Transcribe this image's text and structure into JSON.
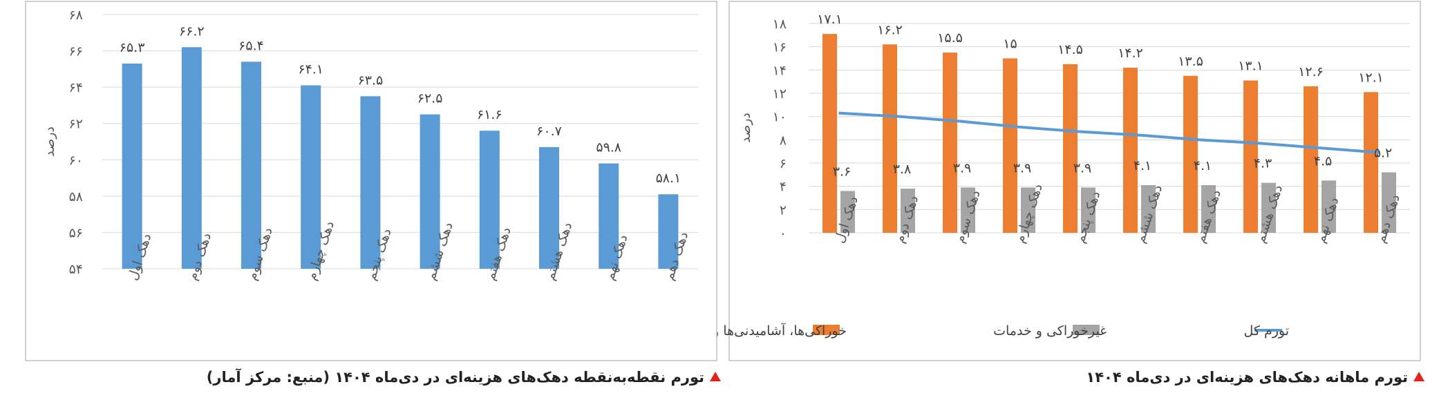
{
  "colors": {
    "food": "#ED7D31",
    "nonfood": "#A5A5A5",
    "total": "#5B9BD5",
    "bar_right": "#5B9BD5",
    "caption_marker": "#E0241B"
  },
  "captions": {
    "left_panel": "تورم ماهانه دهک‌های هزینه‌ای در دی‌ماه ۱۴۰۴",
    "right_panel": "تورم نقطه‌به‌نقطه دهک‌های هزینه‌ای در دی‌ماه ۱۴۰۴ (منبع: مرکز آمار)"
  },
  "chart_data": [
    {
      "id": "monthly",
      "type": "bar",
      "combo_line_series": "تورم کل",
      "categories": [
        "دهک اول",
        "دهک دوم",
        "دهک سوم",
        "دهک چهارم",
        "دهک پنجم",
        "دهک ششم",
        "دهک هفتم",
        "دهک هشتم",
        "دهک نهم",
        "دهک دهم"
      ],
      "series": [
        {
          "name": "خوراکی‌ها، آشامیدنی‌ها و دخانیات",
          "kind": "bar",
          "color": "#ED7D31",
          "values": [
            17.1,
            16.2,
            15.5,
            15,
            14.5,
            14.2,
            13.5,
            13.1,
            12.6,
            12.1
          ],
          "labels": [
            "۱۷.۱",
            "۱۶.۲",
            "۱۵.۵",
            "۱۵",
            "۱۴.۵",
            "۱۴.۲",
            "۱۳.۵",
            "۱۳.۱",
            "۱۲.۶",
            "۱۲.۱"
          ]
        },
        {
          "name": "غیرخوراکی و خدمات",
          "kind": "bar",
          "color": "#A5A5A5",
          "values": [
            3.6,
            3.8,
            3.9,
            3.9,
            3.9,
            4.1,
            4.1,
            4.3,
            4.5,
            5.2
          ],
          "labels": [
            "۳.۶",
            "۳.۸",
            "۳.۹",
            "۳.۹",
            "۳.۹",
            "۴.۱",
            "۴.۱",
            "۴.۳",
            "۴.۵",
            "۵.۲"
          ]
        },
        {
          "name": "تورم کل",
          "kind": "line",
          "color": "#5B9BD5",
          "values": [
            10.3,
            10.0,
            9.6,
            9.1,
            8.7,
            8.4,
            8.0,
            7.7,
            7.3,
            6.9
          ]
        }
      ],
      "ylabel": "درصد",
      "ylim": [
        0,
        18
      ],
      "yticks": [
        0,
        2,
        4,
        6,
        8,
        10,
        12,
        14,
        16,
        18
      ],
      "ytick_labels": [
        "۰",
        "۲",
        "۴",
        "۶",
        "۸",
        "۱۰",
        "۱۲",
        "۱۴",
        "۱۶",
        "۱۸"
      ],
      "grid": true,
      "legend_position": "bottom",
      "legend": [
        "خوراکی‌ها، آشامیدنی‌ها و دخانیات",
        "غیرخوراکی و خدمات",
        "تورم کل"
      ]
    },
    {
      "id": "p2p",
      "type": "bar",
      "categories": [
        "دهک اول",
        "دهک دوم",
        "دهک سوم",
        "دهک چهارم",
        "دهک پنجم",
        "دهک ششم",
        "دهک هفتم",
        "دهک هشتم",
        "دهک نهم",
        "دهک دهم"
      ],
      "values": [
        65.3,
        66.2,
        65.4,
        64.1,
        63.5,
        62.5,
        61.6,
        60.7,
        59.8,
        58.1
      ],
      "labels": [
        "۶۵.۳",
        "۶۶.۲",
        "۶۵.۴",
        "۶۴.۱",
        "۶۳.۵",
        "۶۲.۵",
        "۶۱.۶",
        "۶۰.۷",
        "۵۹.۸",
        "۵۸.۱"
      ],
      "ylabel": "درصد",
      "ylim": [
        54,
        68
      ],
      "yticks": [
        54,
        56,
        58,
        60,
        62,
        64,
        66,
        68
      ],
      "ytick_labels": [
        "۵۴",
        "۵۶",
        "۵۸",
        "۶۰",
        "۶۲",
        "۶۴",
        "۶۶",
        "۶۸"
      ],
      "grid": true
    }
  ]
}
